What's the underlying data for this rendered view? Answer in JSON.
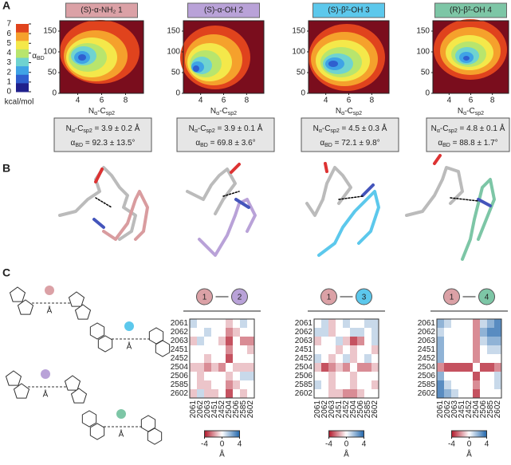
{
  "panels": {
    "a": "A",
    "b": "B",
    "c": "C"
  },
  "energy_maps": {
    "colorbar": {
      "lim": [
        0,
        7
      ],
      "ticks": [
        0,
        1,
        2,
        3,
        4,
        5,
        6,
        7
      ],
      "unit": "kcal/mol"
    },
    "x_label": [
      "N",
      "α",
      "-C",
      "sp2"
    ],
    "y_label": [
      "α",
      "BD"
    ],
    "xlim": [
      2.5,
      9.5
    ],
    "xticks": [
      4,
      6,
      8
    ],
    "ylim": [
      0,
      175
    ],
    "yticks": [
      0,
      50,
      100,
      150
    ],
    "maps": [
      {
        "title": "(S)-α-NH₂ 1",
        "color": "#dba1a6",
        "stats": [
          [
            "N",
            "α",
            "-C",
            "sp2",
            " = 3.9 ± 0.2 Å"
          ],
          [
            "α",
            "BD",
            " = 92.3 ± 13.5°"
          ]
        ]
      },
      {
        "title": "(S)-α-OH 2",
        "color": "#b9a2d8",
        "stats": [
          [
            "N",
            "α",
            "-C",
            "sp2",
            " = 3.9 ± 0.1 Å"
          ],
          [
            "α",
            "BD",
            " = 69.8 ± 3.6°"
          ]
        ]
      },
      {
        "title": "(S)-β²-OH 3",
        "color": "#5cc8ec",
        "stats": [
          [
            "N",
            "α",
            "-C",
            "sp2",
            " = 4.5 ± 0.3 Å"
          ],
          [
            "α",
            "BD",
            " = 72.1 ± 9.8°"
          ]
        ]
      },
      {
        "title": "(R)-β²-OH 4",
        "color": "#7dc6a6",
        "stats": [
          [
            "N",
            "α",
            "-C",
            "sp2",
            " = 4.8 ± 0.1 Å"
          ],
          [
            "α",
            "BD",
            " = 88.8 ± 1.7°"
          ]
        ]
      }
    ]
  },
  "diagrams": [
    {
      "label": "Å",
      "color": "#dba1a6"
    },
    {
      "label": "Å",
      "color": "#5cc8ec"
    },
    {
      "label": "Å",
      "color": "#b9a2d8"
    },
    {
      "label": "Å",
      "color": "#7dc6a6"
    }
  ],
  "distance_maps": {
    "residues": [
      "2061",
      "2062",
      "2063",
      "2451",
      "2452",
      "2504",
      "2506",
      "2585",
      "2602"
    ],
    "colorbar": {
      "lim": [
        -4,
        4
      ],
      "ticks": [
        -4,
        0,
        4
      ],
      "unit": "Å"
    },
    "maps": [
      {
        "pair": [
          "1",
          "2"
        ],
        "colors": [
          "#dba1a6",
          "#b9a2d8"
        ],
        "values": [
          [
            1,
            0,
            0,
            0,
            0,
            -1,
            0,
            1,
            0
          ],
          [
            0,
            0,
            1,
            0,
            0,
            -2,
            -1,
            0,
            0
          ],
          [
            -1,
            1,
            0,
            0,
            -1,
            -3,
            0,
            -2,
            -2
          ],
          [
            0,
            0,
            0,
            0,
            0,
            -2,
            0,
            0,
            -1
          ],
          [
            0,
            0,
            -1,
            0,
            0,
            -3,
            0,
            0,
            0
          ],
          [
            -1,
            -1,
            -2,
            -1,
            -2,
            0,
            -1,
            -1,
            -1
          ],
          [
            0,
            -1,
            0,
            0,
            0,
            -1,
            0,
            1,
            1
          ],
          [
            0,
            -1,
            -1,
            0,
            0,
            -2,
            -1,
            0,
            0
          ],
          [
            -1,
            1,
            -1,
            -1,
            0,
            -3,
            0,
            -1,
            0
          ]
        ]
      },
      {
        "pair": [
          "1",
          "3"
        ],
        "colors": [
          "#dba1a6",
          "#5cc8ec"
        ],
        "values": [
          [
            0,
            1,
            -1,
            0,
            1,
            0,
            0,
            1,
            1
          ],
          [
            1,
            1,
            -1,
            0,
            0,
            1,
            1,
            0,
            1
          ],
          [
            -1,
            0,
            0,
            1,
            -1,
            -3,
            -2,
            0,
            1
          ],
          [
            0,
            0,
            0,
            -1,
            0,
            -1,
            0,
            0,
            -1
          ],
          [
            1,
            0,
            -1,
            0,
            1,
            -1,
            0,
            1,
            0
          ],
          [
            -1,
            -3,
            -2,
            -1,
            -2,
            0,
            -2,
            -2,
            -1
          ],
          [
            0,
            0,
            -1,
            0,
            0,
            -1,
            0,
            0,
            0
          ],
          [
            1,
            0,
            -1,
            0,
            0,
            -1,
            0,
            0,
            -1
          ],
          [
            0,
            0,
            -1,
            -1,
            -2,
            -2,
            -1,
            0,
            0
          ]
        ]
      },
      {
        "pair": [
          "1",
          "4"
        ],
        "colors": [
          "#dba1a6",
          "#7dc6a6"
        ],
        "values": [
          [
            2,
            1,
            0,
            0,
            0,
            -2,
            1,
            2,
            3
          ],
          [
            1,
            0,
            0,
            0,
            0,
            -2,
            2,
            3,
            3
          ],
          [
            2,
            0,
            0,
            0,
            0,
            -2,
            1,
            2,
            2
          ],
          [
            2,
            0,
            0,
            0,
            0,
            -2,
            0,
            1,
            1
          ],
          [
            2,
            0,
            0,
            0,
            0,
            -2,
            0,
            0,
            0
          ],
          [
            -2,
            -3,
            -3,
            -3,
            -3,
            0,
            -3,
            -3,
            -2
          ],
          [
            2,
            0,
            0,
            0,
            0,
            -3,
            0,
            0,
            1
          ],
          [
            3,
            1,
            0,
            0,
            0,
            -2,
            0,
            0,
            1
          ],
          [
            3,
            2,
            1,
            0,
            0,
            -3,
            0,
            0,
            0
          ]
        ]
      }
    ]
  }
}
